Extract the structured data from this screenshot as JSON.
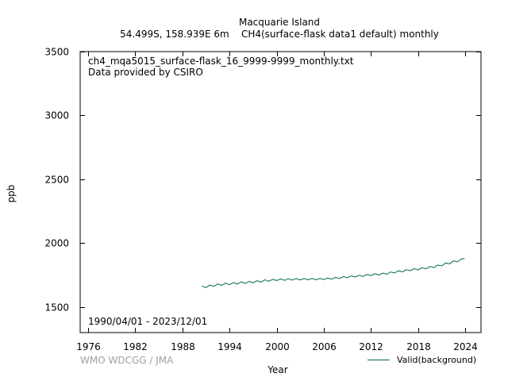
{
  "header": {
    "title": "Macquarie Island",
    "subtitle": "54.499S, 158.939E 6m    CH4(surface-flask data1 default) monthly"
  },
  "plot": {
    "file_label": "ch4_mqa5015_surface-flask_16_9999-9999_monthly.txt",
    "provider_label": "Data provided by CSIRO",
    "period_label": "1990/04/01 - 2023/12/01"
  },
  "footer": {
    "credit": "WMO WDCGG / JMA"
  },
  "colors": {
    "series": "#006b3c",
    "credit": "#a0a0a0",
    "axis": "#000000"
  },
  "chart_data": {
    "type": "line",
    "xlabel": "Year",
    "ylabel": "ppb",
    "xlim": [
      1975,
      2026
    ],
    "ylim": [
      1300,
      3500
    ],
    "xticks": [
      1976,
      1982,
      1988,
      1994,
      2000,
      2006,
      2012,
      2018,
      2024
    ],
    "yticks": [
      1500,
      2000,
      2500,
      3000,
      3500
    ],
    "legend_position": "bottom-right",
    "grid": false,
    "series": [
      {
        "name": "Valid(background)",
        "frequency": "monthly",
        "x": [
          1990.5,
          1991,
          1991.5,
          1992,
          1992.5,
          1993,
          1993.5,
          1994,
          1994.5,
          1995,
          1995.5,
          1996,
          1996.5,
          1997,
          1997.5,
          1998,
          1998.5,
          1999,
          1999.5,
          2000,
          2000.5,
          2001,
          2001.5,
          2002,
          2002.5,
          2003,
          2003.5,
          2004,
          2004.5,
          2005,
          2005.5,
          2006,
          2006.5,
          2007,
          2007.5,
          2008,
          2008.5,
          2009,
          2009.5,
          2010,
          2010.5,
          2011,
          2011.5,
          2012,
          2012.5,
          2013,
          2013.5,
          2014,
          2014.5,
          2015,
          2015.5,
          2016,
          2016.5,
          2017,
          2017.5,
          2018,
          2018.5,
          2019,
          2019.5,
          2020,
          2020.5,
          2021,
          2021.5,
          2022,
          2022.5,
          2023,
          2023.5,
          2023.92
        ],
        "y": [
          1665,
          1652,
          1672,
          1662,
          1681,
          1669,
          1687,
          1675,
          1692,
          1680,
          1697,
          1685,
          1701,
          1690,
          1706,
          1695,
          1713,
          1702,
          1717,
          1707,
          1720,
          1709,
          1722,
          1711,
          1723,
          1712,
          1723,
          1713,
          1724,
          1713,
          1724,
          1715,
          1727,
          1719,
          1732,
          1724,
          1738,
          1730,
          1744,
          1735,
          1749,
          1740,
          1755,
          1746,
          1761,
          1751,
          1766,
          1757,
          1775,
          1767,
          1784,
          1775,
          1793,
          1784,
          1801,
          1791,
          1808,
          1799,
          1817,
          1809,
          1829,
          1822,
          1845,
          1838,
          1861,
          1853,
          1877,
          1880
        ]
      }
    ]
  }
}
